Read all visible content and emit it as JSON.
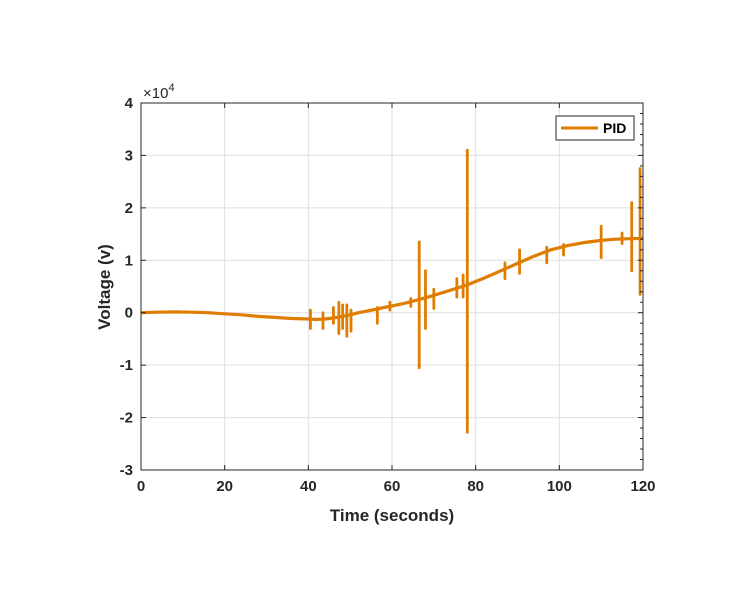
{
  "chart_data": {
    "type": "line",
    "title": "",
    "xlabel": "Time (seconds)",
    "ylabel": "Voltage (v)",
    "y_exponent_label": "×10",
    "y_exponent_power": "4",
    "xlim": [
      0,
      120
    ],
    "ylim": [
      -3,
      4
    ],
    "y_scale_factor": 10000,
    "x_ticks": [
      "0",
      "20",
      "40",
      "60",
      "80",
      "100",
      "120"
    ],
    "y_ticks": [
      "-3",
      "-2",
      "-1",
      "0",
      "1",
      "2",
      "3",
      "4"
    ],
    "grid": true,
    "legend": {
      "position": "top-right",
      "entries": [
        "PID"
      ]
    },
    "colors": {
      "PID": "#DE7D00"
    },
    "series": [
      {
        "name": "PID",
        "baseline": {
          "x": [
            0,
            4,
            8,
            12,
            16,
            20,
            24,
            28,
            32,
            36,
            40,
            42,
            44,
            46,
            48,
            50,
            52,
            54,
            57,
            60,
            63,
            66,
            70,
            74,
            78,
            82,
            86,
            90,
            94,
            98,
            102,
            106,
            110,
            113,
            116,
            120
          ],
          "y": [
            0,
            0.01,
            0.015,
            0.01,
            0,
            -0.02,
            -0.04,
            -0.07,
            -0.09,
            -0.11,
            -0.12,
            -0.13,
            -0.12,
            -0.1,
            -0.07,
            -0.04,
            0,
            0.03,
            0.08,
            0.13,
            0.18,
            0.24,
            0.33,
            0.43,
            0.53,
            0.66,
            0.8,
            0.94,
            1.08,
            1.2,
            1.28,
            1.34,
            1.38,
            1.4,
            1.41,
            1.42
          ]
        },
        "spikes": [
          {
            "x": 40.5,
            "low": -0.3,
            "high": 0.05
          },
          {
            "x": 43.5,
            "low": -0.3,
            "high": 0.0
          },
          {
            "x": 46,
            "low": -0.2,
            "high": 0.1
          },
          {
            "x": 47.3,
            "low": -0.4,
            "high": 0.2
          },
          {
            "x": 48.2,
            "low": -0.3,
            "high": 0.15
          },
          {
            "x": 49.2,
            "low": -0.45,
            "high": 0.15
          },
          {
            "x": 50.2,
            "low": -0.35,
            "high": 0.05
          },
          {
            "x": 56.5,
            "low": -0.2,
            "high": 0.1
          },
          {
            "x": 59.5,
            "low": 0.05,
            "high": 0.2
          },
          {
            "x": 64.5,
            "low": 0.12,
            "high": 0.27
          },
          {
            "x": 66.5,
            "low": -1.05,
            "high": 1.35
          },
          {
            "x": 68,
            "low": -0.3,
            "high": 0.8
          },
          {
            "x": 70,
            "low": 0.08,
            "high": 0.45
          },
          {
            "x": 75.5,
            "low": 0.3,
            "high": 0.65
          },
          {
            "x": 77,
            "low": 0.3,
            "high": 0.72
          },
          {
            "x": 78,
            "low": -2.28,
            "high": 3.1
          },
          {
            "x": 87,
            "low": 0.65,
            "high": 0.95
          },
          {
            "x": 90.5,
            "low": 0.75,
            "high": 1.2
          },
          {
            "x": 97,
            "low": 0.95,
            "high": 1.25
          },
          {
            "x": 101,
            "low": 1.1,
            "high": 1.3
          },
          {
            "x": 110,
            "low": 1.05,
            "high": 1.65
          },
          {
            "x": 115,
            "low": 1.32,
            "high": 1.52
          },
          {
            "x": 117.3,
            "low": 0.8,
            "high": 2.1
          },
          {
            "x": 119.3,
            "low": 0.35,
            "high": 2.75
          }
        ]
      }
    ]
  }
}
